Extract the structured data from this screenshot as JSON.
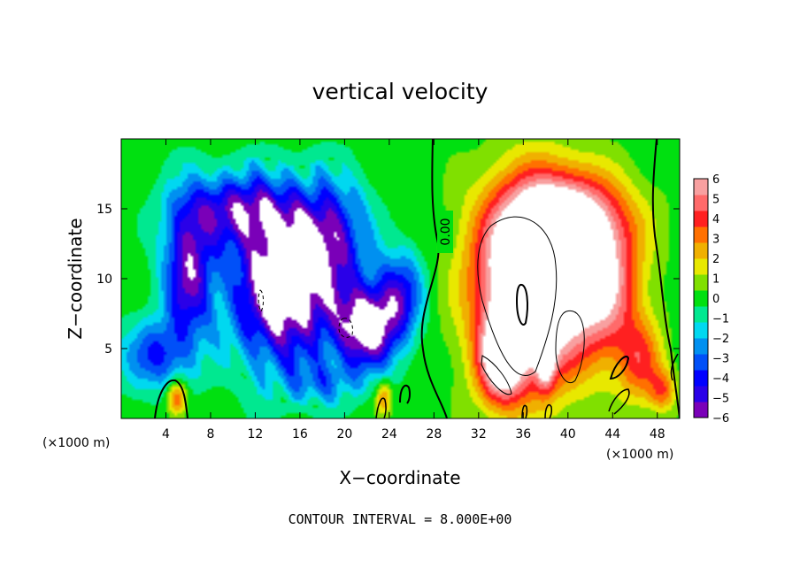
{
  "chart_data": {
    "type": "heatmap",
    "title": "vertical velocity",
    "xlabel": "X−coordinate",
    "ylabel": "Z−coordinate",
    "x_unit_left": "(×1000 m)",
    "x_unit_right": "(×1000 m)",
    "xlim": [
      0,
      50
    ],
    "ylim": [
      0,
      20
    ],
    "x_ticks": [
      {
        "value": 4,
        "label": "4"
      },
      {
        "value": 8,
        "label": "8"
      },
      {
        "value": 12,
        "label": "12"
      },
      {
        "value": 16,
        "label": "16"
      },
      {
        "value": 20,
        "label": "20"
      },
      {
        "value": 24,
        "label": "24"
      },
      {
        "value": 28,
        "label": "28"
      },
      {
        "value": 32,
        "label": "32"
      },
      {
        "value": 36,
        "label": "36"
      },
      {
        "value": 40,
        "label": "40"
      },
      {
        "value": 44,
        "label": "44"
      },
      {
        "value": 48,
        "label": "48"
      }
    ],
    "y_ticks": [
      {
        "value": 5,
        "label": "5"
      },
      {
        "value": 10,
        "label": "10"
      },
      {
        "value": 15,
        "label": "15"
      }
    ],
    "colorbar": {
      "range": [
        -6,
        6
      ],
      "ticks": [
        {
          "value": 6,
          "label": "6"
        },
        {
          "value": 5,
          "label": "5"
        },
        {
          "value": 4,
          "label": "4"
        },
        {
          "value": 3,
          "label": "3"
        },
        {
          "value": 2,
          "label": "2"
        },
        {
          "value": 1,
          "label": "1"
        },
        {
          "value": 0,
          "label": "0"
        },
        {
          "value": -1,
          "label": "−1"
        },
        {
          "value": -2,
          "label": "−2"
        },
        {
          "value": -3,
          "label": "−3"
        },
        {
          "value": -4,
          "label": "−4"
        },
        {
          "value": -5,
          "label": "−5"
        },
        {
          "value": -6,
          "label": "−6"
        }
      ],
      "colors": [
        "#7a00b8",
        "#2a00e8",
        "#0000ff",
        "#0050f8",
        "#0090f0",
        "#00d8f0",
        "#00e890",
        "#00e010",
        "#80e000",
        "#e8e800",
        "#f0b000",
        "#ff7000",
        "#ff2020",
        "#ff6a6a",
        "#f8a0a0"
      ]
    },
    "contour_label": "0.00",
    "footer": "CONTOUR INTERVAL = 8.000E+00",
    "field": {
      "downdrafts": [
        {
          "x": 14.5,
          "z": 9.5,
          "sx": 4.5,
          "sz": 5.5,
          "amp": -8
        },
        {
          "x": 6.0,
          "z": 10.5,
          "sx": 2.2,
          "sz": 5.0,
          "amp": -5.5
        },
        {
          "x": 10.5,
          "z": 15.0,
          "sx": 5.0,
          "sz": 2.5,
          "amp": -4.5
        },
        {
          "x": 19.0,
          "z": 13.0,
          "sx": 3.0,
          "sz": 4.0,
          "amp": -4
        },
        {
          "x": 22.0,
          "z": 6.5,
          "sx": 2.8,
          "sz": 3.0,
          "amp": -7
        },
        {
          "x": 25.0,
          "z": 9.0,
          "sx": 2.0,
          "sz": 3.0,
          "amp": -4
        },
        {
          "x": 3.0,
          "z": 4.5,
          "sx": 3.0,
          "sz": 2.5,
          "amp": -3.5
        },
        {
          "x": 18.0,
          "z": 2.5,
          "sx": 3.0,
          "sz": 1.5,
          "amp": -2
        }
      ],
      "updrafts": [
        {
          "x": 37.0,
          "z": 9.5,
          "sx": 5.0,
          "sz": 6.5,
          "amp": 11
        },
        {
          "x": 40.0,
          "z": 14.0,
          "sx": 5.5,
          "sz": 3.5,
          "amp": 6
        },
        {
          "x": 43.5,
          "z": 9.0,
          "sx": 3.0,
          "sz": 4.5,
          "amp": 4.5
        },
        {
          "x": 34.0,
          "z": 4.0,
          "sx": 2.0,
          "sz": 3.0,
          "amp": 6
        },
        {
          "x": 46.5,
          "z": 4.0,
          "sx": 2.0,
          "sz": 3.0,
          "amp": 3.5
        },
        {
          "x": 5.0,
          "z": 1.5,
          "sx": 0.9,
          "sz": 1.3,
          "amp": 4
        },
        {
          "x": 23.5,
          "z": 1.5,
          "sx": 0.7,
          "sz": 1.2,
          "amp": 3
        },
        {
          "x": 38.0,
          "z": 4.5,
          "sx": 0.8,
          "sz": 2.2,
          "amp": 5
        },
        {
          "x": 48.5,
          "z": 2.0,
          "sx": 1.2,
          "sz": 1.5,
          "amp": 3
        }
      ]
    }
  }
}
